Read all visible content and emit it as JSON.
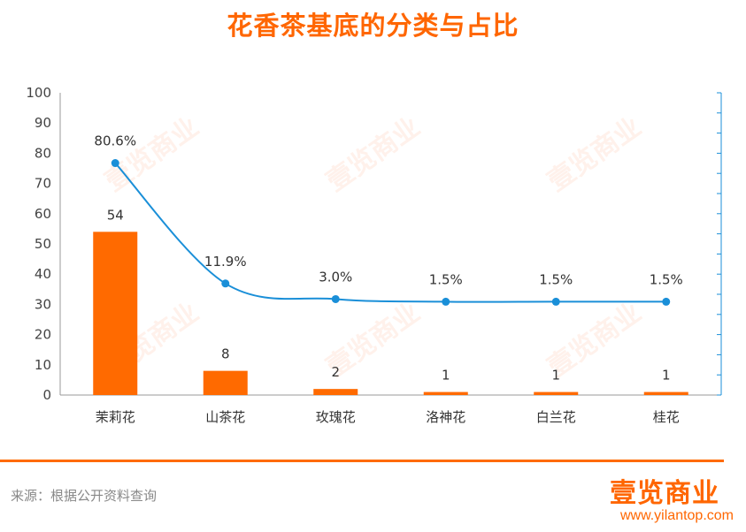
{
  "title": "花香茶基底的分类与占比",
  "chart_data": {
    "type": "bar",
    "categories": [
      "茉莉花",
      "山茶花",
      "玫瑰花",
      "洛神花",
      "白兰花",
      "桂花"
    ],
    "series": [
      {
        "type": "bar",
        "values": [
          54,
          8,
          2,
          1,
          1,
          1
        ],
        "color": "#ff6a00"
      },
      {
        "type": "line",
        "values": [
          80.6,
          11.9,
          3.0,
          1.5,
          1.5,
          1.5
        ],
        "labels": [
          "80.6%",
          "11.9%",
          "3.0%",
          "1.5%",
          "1.5%",
          "1.5%"
        ],
        "color": "#1a8fd8",
        "axis": "right"
      }
    ],
    "ylim": [
      0,
      100
    ],
    "yticks": [
      0,
      10,
      20,
      30,
      40,
      50,
      60,
      70,
      80,
      90,
      100
    ],
    "ylim_right": [
      0,
      100
    ],
    "grid": false
  },
  "footer": {
    "source": "来源：根据公开资料查询",
    "logo": "壹览商业",
    "website": "www.yilantop.com"
  },
  "watermark": "壹览商业"
}
